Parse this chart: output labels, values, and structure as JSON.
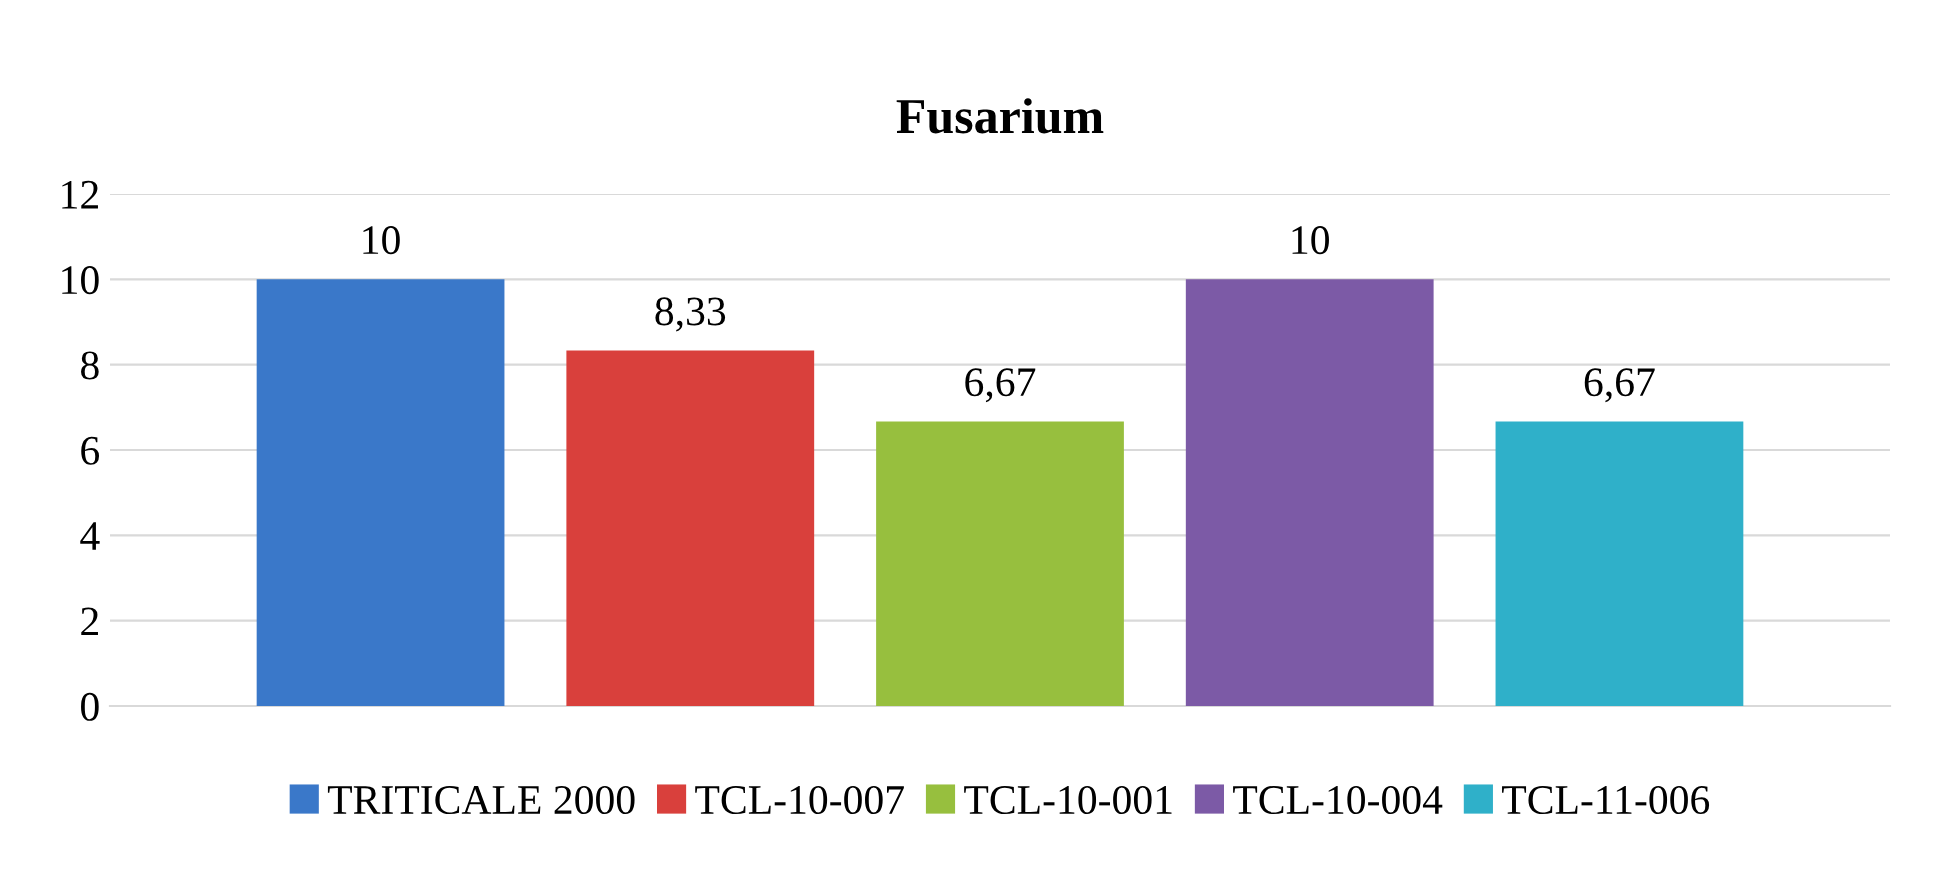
{
  "chart_data": {
    "type": "bar",
    "title": "Fusarium",
    "categories": [
      null
    ],
    "series": [
      {
        "name": "TRITICALE 2000",
        "color": "#3a78c9",
        "values": [
          10
        ],
        "value_labels": [
          "10"
        ]
      },
      {
        "name": "TCL-10-007",
        "color": "#d9403c",
        "values": [
          8.33
        ],
        "value_labels": [
          "8,33"
        ]
      },
      {
        "name": "TCL-10-001",
        "color": "#97bf3e",
        "values": [
          6.67
        ],
        "value_labels": [
          "6,67"
        ]
      },
      {
        "name": "TCL-10-004",
        "color": "#7c5aa6",
        "values": [
          10
        ],
        "value_labels": [
          "10"
        ]
      },
      {
        "name": "TCL-11-006",
        "color": "#2fb0c9",
        "values": [
          6.67
        ],
        "value_labels": [
          "6,67"
        ]
      }
    ],
    "ylim": [
      0,
      12
    ],
    "yticks": [
      0,
      2,
      4,
      6,
      8,
      10,
      12
    ],
    "grid": "y",
    "legend": "bottom"
  }
}
